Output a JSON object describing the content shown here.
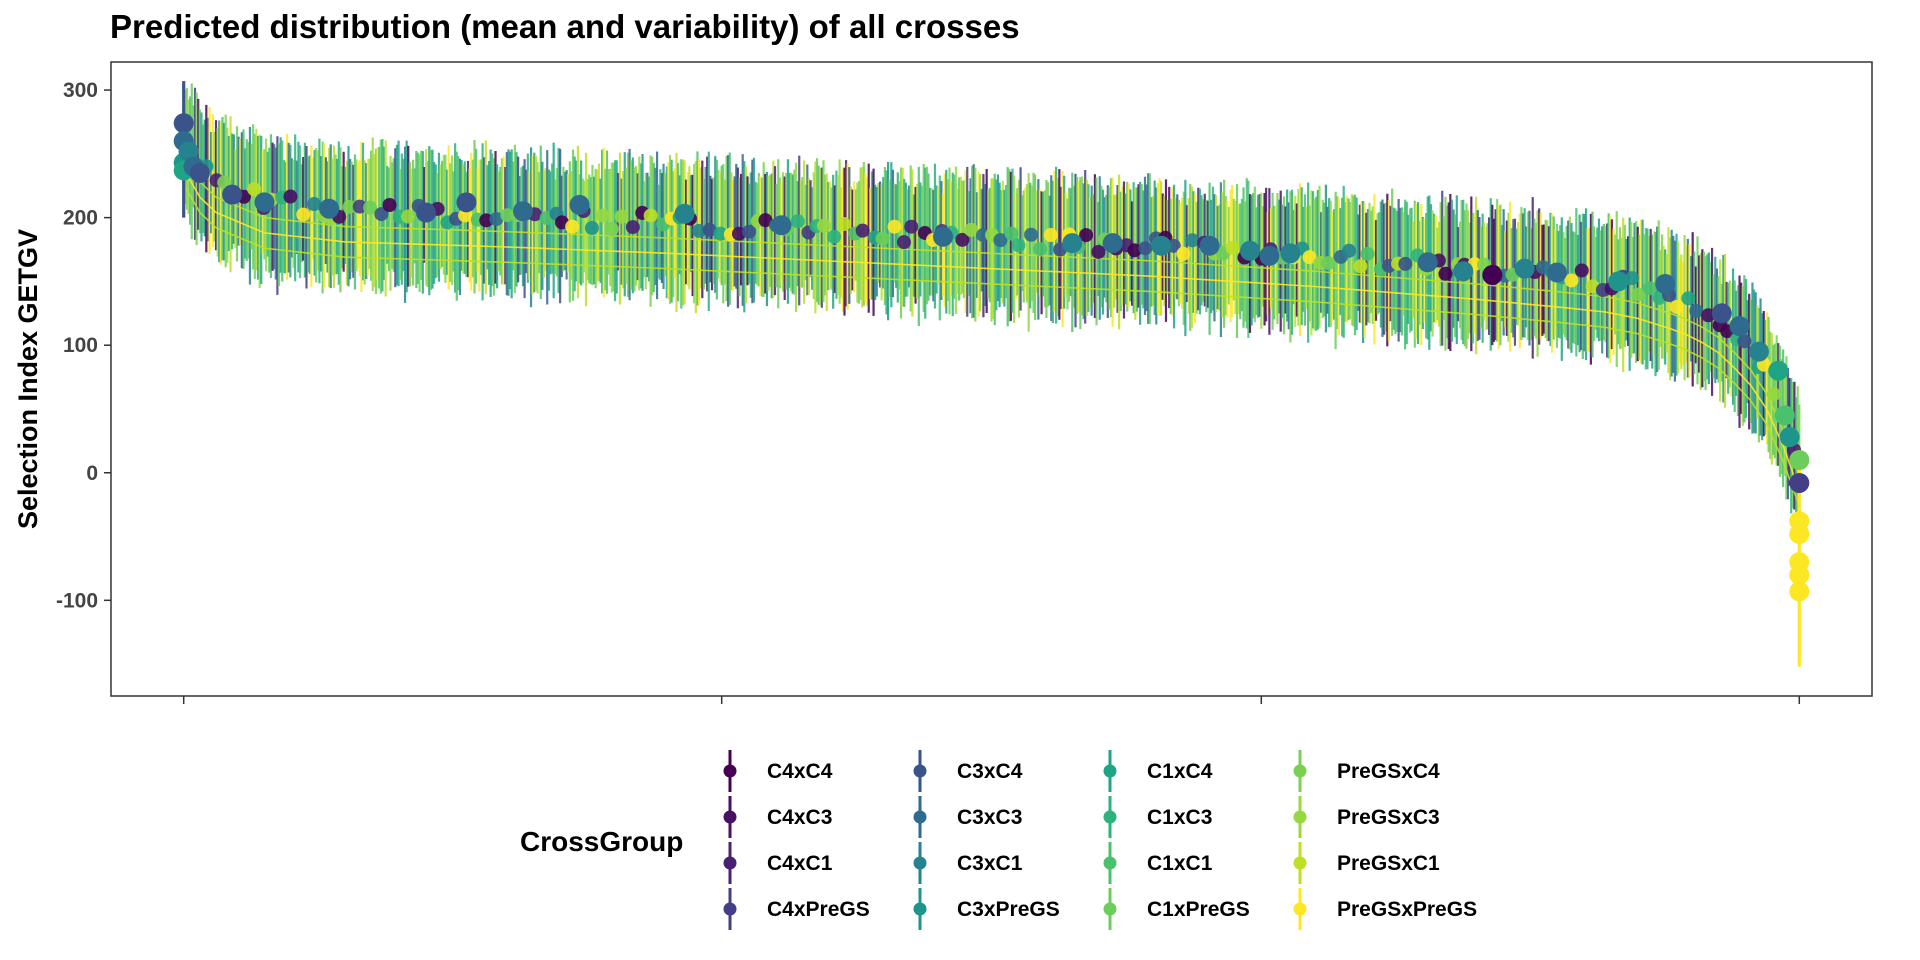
{
  "chart_data": {
    "type": "scatter",
    "title": "Predicted distribution (mean and variability) of all crosses",
    "xlabel": "",
    "ylabel": "Selection Index GETGV",
    "yticks": [
      300,
      200,
      100,
      0,
      -100
    ],
    "ytick_labels": [
      "300",
      "200",
      "100",
      "0",
      "-100"
    ],
    "ylim": [
      -175,
      322
    ],
    "xlim": [
      -45,
      1045
    ],
    "grid": false,
    "legend_position": "bottom",
    "legend": {
      "title": "CrossGroup",
      "entries": [
        {
          "name": "C4xC4",
          "color": "#440154"
        },
        {
          "name": "C4xC3",
          "color": "#471063"
        },
        {
          "name": "C4xC1",
          "color": "#482173"
        },
        {
          "name": "C4xPreGS",
          "color": "#433E85"
        },
        {
          "name": "C3xC4",
          "color": "#3A538B"
        },
        {
          "name": "C3xC3",
          "color": "#2F6B8E"
        },
        {
          "name": "C3xC1",
          "color": "#26828E"
        },
        {
          "name": "C3xPreGS",
          "color": "#1F948C"
        },
        {
          "name": "C1xC4",
          "color": "#20A486"
        },
        {
          "name": "C1xC3",
          "color": "#2DB27D"
        },
        {
          "name": "C1xC1",
          "color": "#4AC16D"
        },
        {
          "name": "C1xPreGS",
          "color": "#6CCD5A"
        },
        {
          "name": "PreGSxC4",
          "color": "#7AD151"
        },
        {
          "name": "PreGSxC3",
          "color": "#95D840"
        },
        {
          "name": "PreGSxC1",
          "color": "#BDDF26"
        },
        {
          "name": "PreGSxPreGS",
          "color": "#FDE725"
        }
      ]
    },
    "mean_curve": {
      "x": [
        0,
        10,
        20,
        50,
        100,
        200,
        300,
        400,
        500,
        600,
        700,
        800,
        850,
        880,
        900,
        920,
        935,
        950,
        965,
        975,
        985,
        993,
        1000
      ],
      "y": [
        262,
        240,
        228,
        212,
        205,
        201,
        196,
        190,
        184,
        178,
        170,
        160,
        154,
        150,
        145,
        137,
        130,
        118,
        100,
        85,
        62,
        35,
        10
      ]
    },
    "highlighted_means": [
      {
        "x": 0,
        "y": 274,
        "group": "C3xC4"
      },
      {
        "x": 0,
        "y": 260,
        "group": "C3xC3"
      },
      {
        "x": 0,
        "y": 243,
        "group": "C3xPreGS"
      },
      {
        "x": 0,
        "y": 237,
        "group": "C1xC4"
      },
      {
        "x": 3,
        "y": 252,
        "group": "C3xC1"
      },
      {
        "x": 6,
        "y": 240,
        "group": "C3xC3"
      },
      {
        "x": 10,
        "y": 235,
        "group": "C3xC4"
      },
      {
        "x": 30,
        "y": 218,
        "group": "C3xC4"
      },
      {
        "x": 50,
        "y": 212,
        "group": "C3xC3"
      },
      {
        "x": 90,
        "y": 207,
        "group": "C3xC3"
      },
      {
        "x": 150,
        "y": 204,
        "group": "C3xC4"
      },
      {
        "x": 175,
        "y": 212,
        "group": "C3xC4"
      },
      {
        "x": 210,
        "y": 205,
        "group": "C3xC3"
      },
      {
        "x": 245,
        "y": 210,
        "group": "C3xC3"
      },
      {
        "x": 310,
        "y": 203,
        "group": "C3xC1"
      },
      {
        "x": 370,
        "y": 194,
        "group": "C3xC3"
      },
      {
        "x": 470,
        "y": 185,
        "group": "C3xC3"
      },
      {
        "x": 550,
        "y": 180,
        "group": "C3xC1"
      },
      {
        "x": 575,
        "y": 180,
        "group": "C3xC3"
      },
      {
        "x": 605,
        "y": 178,
        "group": "C3xC1"
      },
      {
        "x": 635,
        "y": 178,
        "group": "C3xC3"
      },
      {
        "x": 660,
        "y": 174,
        "group": "C3xC1"
      },
      {
        "x": 672,
        "y": 170,
        "group": "C3xC3"
      },
      {
        "x": 685,
        "y": 172,
        "group": "C3xC1"
      },
      {
        "x": 770,
        "y": 165,
        "group": "C3xC3"
      },
      {
        "x": 792,
        "y": 158,
        "group": "C3xC1"
      },
      {
        "x": 810,
        "y": 155,
        "group": "C4xC4"
      },
      {
        "x": 830,
        "y": 160,
        "group": "C3xC1"
      },
      {
        "x": 850,
        "y": 157,
        "group": "C3xC3"
      },
      {
        "x": 888,
        "y": 150,
        "group": "C3xPreGS"
      },
      {
        "x": 917,
        "y": 148,
        "group": "C3xC3"
      },
      {
        "x": 952,
        "y": 125,
        "group": "C3xC4"
      },
      {
        "x": 963,
        "y": 115,
        "group": "C3xC3"
      },
      {
        "x": 975,
        "y": 95,
        "group": "C3xC1"
      },
      {
        "x": 987,
        "y": 80,
        "group": "C1xC4"
      },
      {
        "x": 991,
        "y": 45,
        "group": "C1xC1"
      },
      {
        "x": 994,
        "y": 28,
        "group": "C3xPreGS"
      },
      {
        "x": 1000,
        "y": 10,
        "group": "C1xPreGS"
      },
      {
        "x": 1000,
        "y": -8,
        "group": "C4xPreGS"
      },
      {
        "x": 1000,
        "y": -38,
        "group": "PreGSxPreGS"
      },
      {
        "x": 1000,
        "y": -48,
        "group": "PreGSxPreGS"
      },
      {
        "x": 1000,
        "y": -70,
        "group": "PreGSxPreGS"
      },
      {
        "x": 1000,
        "y": -80,
        "group": "PreGSxPreGS"
      },
      {
        "x": 1000,
        "y": -93,
        "group": "PreGSxPreGS"
      }
    ],
    "extreme_intervals": [
      {
        "x": 0,
        "low": 200,
        "high": 307,
        "group": "C3xC4"
      },
      {
        "x": 1000,
        "low": -152,
        "high": 20,
        "group": "PreGSxPreGS"
      }
    ]
  }
}
